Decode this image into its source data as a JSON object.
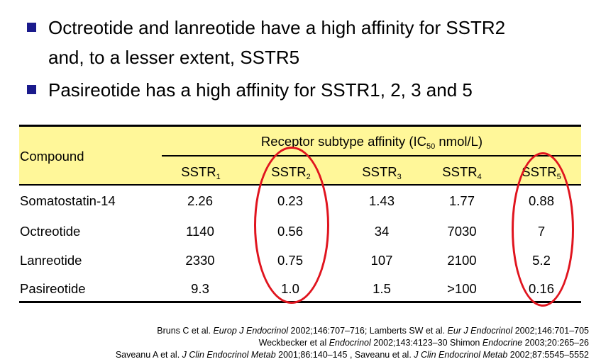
{
  "bullets": [
    {
      "line1": "Octreotide and lanreotide have a high affinity for SSTR2",
      "line2": "and, to a lesser extent, SSTR5"
    },
    {
      "line1": "Pasireotide has a high affinity for SSTR1, 2, 3 and 5"
    }
  ],
  "table": {
    "compound_header": "Compound",
    "affinity_header_pre": "Receptor subtype affinity (IC",
    "affinity_header_sub": "50",
    "affinity_header_post": " nmol/L)",
    "columns": [
      {
        "base": "SSTR",
        "sub": "1"
      },
      {
        "base": "SSTR",
        "sub": "2"
      },
      {
        "base": "SSTR",
        "sub": "3"
      },
      {
        "base": "SSTR",
        "sub": "4"
      },
      {
        "base": "SSTR",
        "sub": "5"
      }
    ],
    "rows": [
      {
        "compound": "Somatostatin-14",
        "values": [
          "2.26",
          "0.23",
          "1.43",
          "1.77",
          "0.88"
        ]
      },
      {
        "compound": "Octreotide",
        "values": [
          "1140",
          "0.56",
          "34",
          "7030",
          "7"
        ]
      },
      {
        "compound": "Lanreotide",
        "values": [
          "2330",
          "0.75",
          "107",
          "2100",
          "5.2"
        ]
      },
      {
        "compound": "Pasireotide",
        "values": [
          "9.3",
          "1.0",
          "1.5",
          ">100",
          "0.16"
        ]
      }
    ]
  },
  "references": {
    "line1": {
      "a": "Bruns C et al. ",
      "a_j": "Europ J Endocrinol",
      "b": " 2002;146:707–716; Lamberts SW et al.  ",
      "b_j": "Eur J Endocrinol",
      "c": " 2002;146:701–705"
    },
    "line2": {
      "a": "Weckbecker et al ",
      "a_j": "Endocrinol",
      "b": " 2002;143:4123–30 Shimon ",
      "b_j": "Endocrine",
      "c": " 2003;20:265–26"
    },
    "line3": {
      "a": "Saveanu A et al. ",
      "a_j": "J Clin Endocrinol Metab",
      "b": " 2001;86:140–145 , Saveanu et al. ",
      "b_j": "J Clin Endocrinol Metab",
      "c": " 2002;87:5545–5552"
    }
  },
  "colors": {
    "highlight": "#fff799",
    "bullet": "#1a1a8c",
    "circle": "#e0141e"
  }
}
